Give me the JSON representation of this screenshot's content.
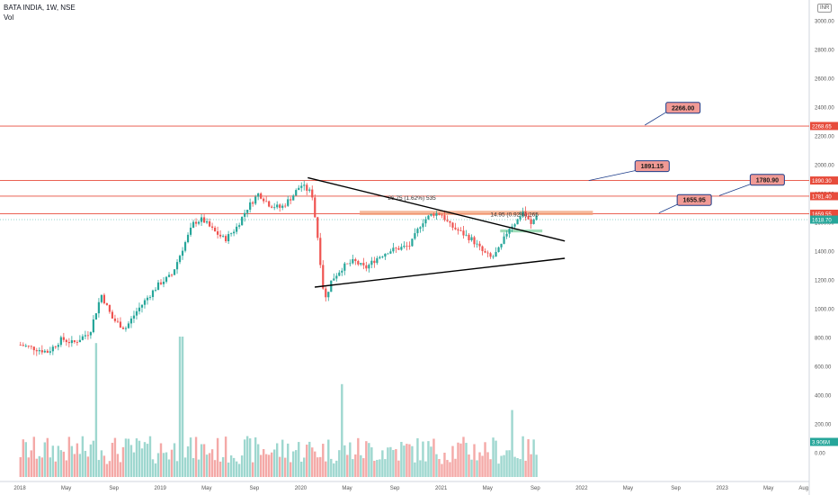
{
  "header": {
    "title": "BATA INDIA, 1W, NSE",
    "vol_label": "Vol",
    "currency": "INR"
  },
  "colors": {
    "up": "#26a69a",
    "down": "#ef5350",
    "vol_up": "#9ed7cf",
    "vol_down": "#f4a9a7",
    "hline": "#e74c3c",
    "trendline": "#000000",
    "callout_fill": "#f19a95",
    "callout_border": "#1d3d8a",
    "zone_fill": "#f2a27a",
    "zone_green": "#7fd0a0"
  },
  "chart_data": {
    "type": "candlestick",
    "timeframe": "1W",
    "symbol": "BATA INDIA",
    "exchange": "NSE",
    "x_ticks": [
      "2018",
      "May",
      "Sep",
      "2019",
      "May",
      "Sep",
      "2020",
      "May",
      "Sep",
      "2021",
      "May",
      "Sep",
      "2022",
      "May",
      "Sep",
      "2023",
      "May",
      "Aug"
    ],
    "y_ticks": [
      "3000.00",
      "2800.00",
      "2600.00",
      "2400.00",
      "2200.00",
      "2000.00",
      "1800.00",
      "1600.00",
      "1400.00",
      "1200.00",
      "1000.00",
      "800.00",
      "600.00",
      "400.00",
      "200.00",
      "0.00"
    ],
    "ylim": [
      -100,
      3100
    ],
    "price_path": [
      [
        2018.0,
        750
      ],
      [
        2018.08,
        730
      ],
      [
        2018.2,
        700
      ],
      [
        2018.3,
        790
      ],
      [
        2018.38,
        760
      ],
      [
        2018.5,
        840
      ],
      [
        2018.58,
        1100
      ],
      [
        2018.66,
        930
      ],
      [
        2018.75,
        860
      ],
      [
        2018.83,
        980
      ],
      [
        2018.92,
        1090
      ],
      [
        2019.0,
        1180
      ],
      [
        2019.08,
        1230
      ],
      [
        2019.16,
        1420
      ],
      [
        2019.24,
        1600
      ],
      [
        2019.3,
        1620
      ],
      [
        2019.38,
        1540
      ],
      [
        2019.46,
        1480
      ],
      [
        2019.54,
        1560
      ],
      [
        2019.62,
        1700
      ],
      [
        2019.7,
        1800
      ],
      [
        2019.78,
        1720
      ],
      [
        2019.86,
        1700
      ],
      [
        2019.94,
        1780
      ],
      [
        2020.0,
        1860
      ],
      [
        2020.08,
        1800
      ],
      [
        2020.12,
        1500
      ],
      [
        2020.17,
        1050
      ],
      [
        2020.22,
        1200
      ],
      [
        2020.3,
        1290
      ],
      [
        2020.38,
        1330
      ],
      [
        2020.46,
        1280
      ],
      [
        2020.54,
        1350
      ],
      [
        2020.62,
        1400
      ],
      [
        2020.7,
        1420
      ],
      [
        2020.78,
        1440
      ],
      [
        2020.86,
        1600
      ],
      [
        2020.94,
        1660
      ],
      [
        2021.0,
        1660
      ],
      [
        2021.06,
        1580
      ],
      [
        2021.14,
        1530
      ],
      [
        2021.22,
        1480
      ],
      [
        2021.3,
        1390
      ],
      [
        2021.36,
        1350
      ],
      [
        2021.42,
        1420
      ],
      [
        2021.48,
        1560
      ],
      [
        2021.54,
        1610
      ],
      [
        2021.58,
        1680
      ],
      [
        2021.64,
        1580
      ],
      [
        2021.68,
        1660
      ]
    ],
    "volume_peaks": [
      [
        2018.55,
        620
      ],
      [
        2019.15,
        650
      ],
      [
        2020.3,
        430
      ],
      [
        2021.5,
        310
      ]
    ],
    "horizontal_levels": [
      {
        "value": 2268.65,
        "label": "2268.65"
      },
      {
        "value": 1890.3,
        "label": "1890.30"
      },
      {
        "value": 1781.4,
        "label": "1781.40"
      },
      {
        "value": 1659.55,
        "label": "1659.55"
      }
    ],
    "last_price": {
      "value": 1618.7,
      "label": "1618.70"
    },
    "last_volume": {
      "value": 3.906,
      "label": "3.906M"
    },
    "trendlines": [
      {
        "from": [
          2020.05,
          1910
        ],
        "to": [
          2021.88,
          1470
        ]
      },
      {
        "from": [
          2020.1,
          1150
        ],
        "to": [
          2021.88,
          1350
        ]
      }
    ],
    "callouts": [
      {
        "label": "2266.00",
        "box": [
          2022.6,
          2395
        ],
        "anchor": [
          2022.45,
          2275
        ]
      },
      {
        "label": "1891.15",
        "box": [
          2022.38,
          1990
        ],
        "anchor": [
          2022.05,
          1890
        ]
      },
      {
        "label": "1655.95",
        "box": [
          2022.68,
          1755
        ],
        "anchor": [
          2022.55,
          1665
        ]
      },
      {
        "label": "1780.90",
        "box": [
          2023.2,
          1895
        ],
        "anchor": [
          2022.98,
          1785
        ]
      }
    ],
    "annotations": [
      {
        "label": "26.75 (1.62%) 535",
        "at": [
          2020.62,
          1755
        ]
      },
      {
        "label": "14.95 (0.92%) 265",
        "at": [
          2021.35,
          1640
        ]
      }
    ],
    "zones": [
      {
        "from": [
          2020.42,
          1680
        ],
        "to": [
          2022.08,
          1650
        ],
        "color": "zone_fill"
      },
      {
        "from": [
          2021.42,
          1550
        ],
        "to": [
          2021.72,
          1530
        ],
        "color": "zone_green"
      }
    ]
  }
}
